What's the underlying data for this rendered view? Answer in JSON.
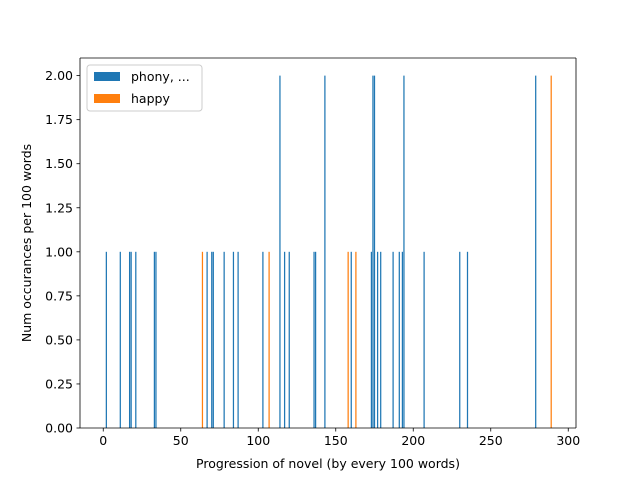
{
  "chart_data": {
    "type": "bar",
    "title": "",
    "xlabel": "Progression of novel (by every 100 words)",
    "ylabel": "Num occurances per 100 words",
    "xlim": [
      -15,
      305
    ],
    "ylim": [
      0,
      2.1
    ],
    "xticks": [
      0,
      50,
      100,
      150,
      200,
      250,
      300
    ],
    "yticks": [
      0.0,
      0.25,
      0.5,
      0.75,
      1.0,
      1.25,
      1.5,
      1.75,
      2.0
    ],
    "ytick_labels": [
      "0.00",
      "0.25",
      "0.50",
      "0.75",
      "1.00",
      "1.25",
      "1.50",
      "1.75",
      "2.00"
    ],
    "grid": false,
    "legend_position": "top-left",
    "series": [
      {
        "name": "phony, ...",
        "color": "#1f77b4",
        "points": [
          {
            "x": 2,
            "y": 1
          },
          {
            "x": 11,
            "y": 1
          },
          {
            "x": 17,
            "y": 1
          },
          {
            "x": 18,
            "y": 1
          },
          {
            "x": 21,
            "y": 1
          },
          {
            "x": 33,
            "y": 1
          },
          {
            "x": 34,
            "y": 1
          },
          {
            "x": 67,
            "y": 1
          },
          {
            "x": 70,
            "y": 1
          },
          {
            "x": 71,
            "y": 1
          },
          {
            "x": 78,
            "y": 1
          },
          {
            "x": 84,
            "y": 1
          },
          {
            "x": 87,
            "y": 1
          },
          {
            "x": 103,
            "y": 1
          },
          {
            "x": 114,
            "y": 2
          },
          {
            "x": 117,
            "y": 1
          },
          {
            "x": 120,
            "y": 1
          },
          {
            "x": 136,
            "y": 1
          },
          {
            "x": 137,
            "y": 1
          },
          {
            "x": 143,
            "y": 2
          },
          {
            "x": 160,
            "y": 1
          },
          {
            "x": 173,
            "y": 1
          },
          {
            "x": 174,
            "y": 2
          },
          {
            "x": 175,
            "y": 2
          },
          {
            "x": 177,
            "y": 1
          },
          {
            "x": 179,
            "y": 1
          },
          {
            "x": 187,
            "y": 1
          },
          {
            "x": 191,
            "y": 1
          },
          {
            "x": 193,
            "y": 1
          },
          {
            "x": 194,
            "y": 2
          },
          {
            "x": 207,
            "y": 1
          },
          {
            "x": 230,
            "y": 1
          },
          {
            "x": 235,
            "y": 1
          },
          {
            "x": 279,
            "y": 2
          }
        ]
      },
      {
        "name": "happy",
        "color": "#ff7f0e",
        "points": [
          {
            "x": 64,
            "y": 1
          },
          {
            "x": 107,
            "y": 1
          },
          {
            "x": 158,
            "y": 1
          },
          {
            "x": 163,
            "y": 1
          },
          {
            "x": 289,
            "y": 2
          }
        ]
      }
    ]
  }
}
